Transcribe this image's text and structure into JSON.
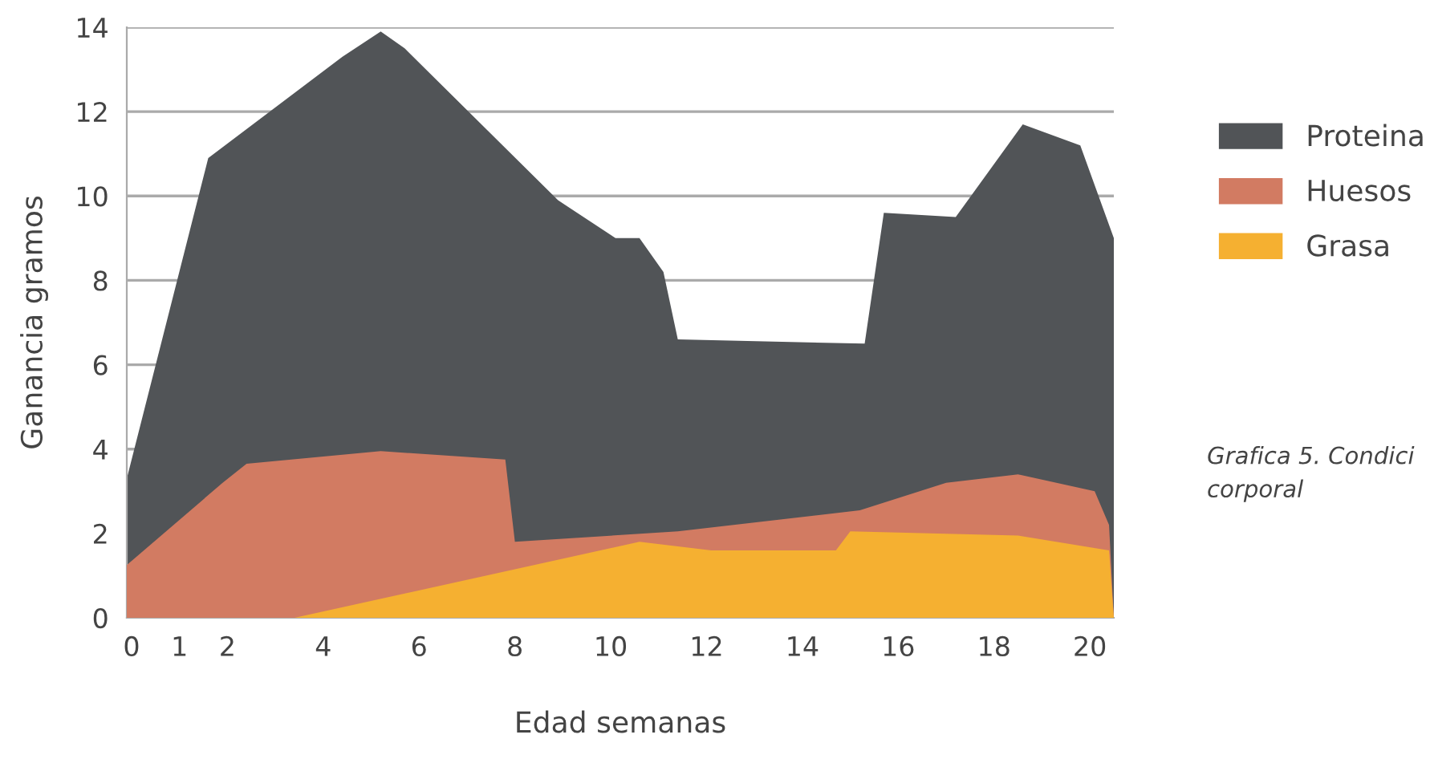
{
  "chart_data": {
    "type": "area",
    "xlabel": "Edad semanas",
    "ylabel": "Ganancia gramos",
    "xlim": [
      -0.1,
      20.5
    ],
    "xticks": [
      0,
      1,
      2,
      4,
      6,
      8,
      10,
      12,
      14,
      16,
      18,
      20
    ],
    "ylim": [
      0,
      14
    ],
    "yticks": [
      0,
      2,
      4,
      6,
      8,
      10,
      12,
      14
    ],
    "grid": "y",
    "legend": "right",
    "series": [
      {
        "name": "Proteina",
        "color": "#515457",
        "x": [
          -0.1,
          1.6,
          4.4,
          5.2,
          5.7,
          8.9,
          10.1,
          10.6,
          11.1,
          11.4,
          15.3,
          15.7,
          17.2,
          18.6,
          19.8,
          20.5
        ],
        "values": [
          3.3,
          10.9,
          13.3,
          13.9,
          13.5,
          9.9,
          9.0,
          9.0,
          8.2,
          6.6,
          6.5,
          9.6,
          9.5,
          11.7,
          11.2,
          9.0
        ]
      },
      {
        "name": "Huesos",
        "color": "#d27b62",
        "x": [
          -0.1,
          1.9,
          2.4,
          5.2,
          7.8,
          8.0,
          11.4,
          15.2,
          17.0,
          18.5,
          20.1,
          20.4,
          20.5
        ],
        "values": [
          1.25,
          3.2,
          3.65,
          3.95,
          3.75,
          1.8,
          2.05,
          2.55,
          3.2,
          3.4,
          3.0,
          2.2,
          0
        ]
      },
      {
        "name": "Grasa",
        "color": "#f5b031",
        "x": [
          3.4,
          10.6,
          12.1,
          14.7,
          15.0,
          18.5,
          20.4,
          20.5
        ],
        "values": [
          0,
          1.8,
          1.6,
          1.6,
          2.05,
          1.95,
          1.6,
          0
        ]
      }
    ],
    "annotations": [
      "Grafica 5. Condici\ncorporal"
    ]
  }
}
